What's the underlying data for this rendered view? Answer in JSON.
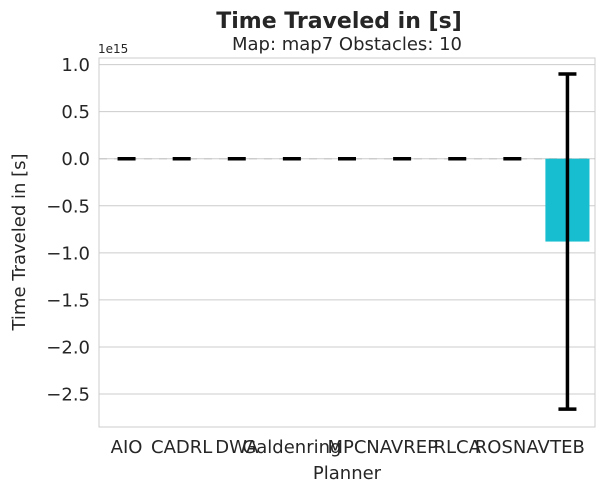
{
  "chart_data": {
    "type": "bar",
    "title": "Time Traveled in [s]",
    "subtitle": "Map: map7 Obstacles: 10",
    "xlabel": "Planner",
    "ylabel": "Time Traveled in [s]",
    "y_offset_label": "1e15",
    "categories": [
      "AIO",
      "CADRL",
      "DWA",
      "Galdenring",
      "MPC",
      "NAVREP",
      "RLCA",
      "ROSNAV",
      "TEB"
    ],
    "values": [
      0,
      0,
      0,
      0,
      0,
      0,
      0,
      0,
      -0.88
    ],
    "error": [
      0,
      0,
      0,
      0,
      0,
      0,
      0,
      0,
      1.78
    ],
    "unit_scale": 1000000000000000.0,
    "ylim": [
      -2.85,
      1.07
    ],
    "yticks": [
      1.0,
      0.5,
      0.0,
      -0.5,
      -1.0,
      -1.5,
      -2.0,
      -2.5
    ],
    "ytick_labels": [
      "1.0",
      "0.5",
      "0.0",
      "−0.5",
      "−1.0",
      "−1.5",
      "−2.0",
      "−2.5"
    ],
    "bar_color": "#17becf",
    "grid": true,
    "zero_line": "dashed"
  }
}
